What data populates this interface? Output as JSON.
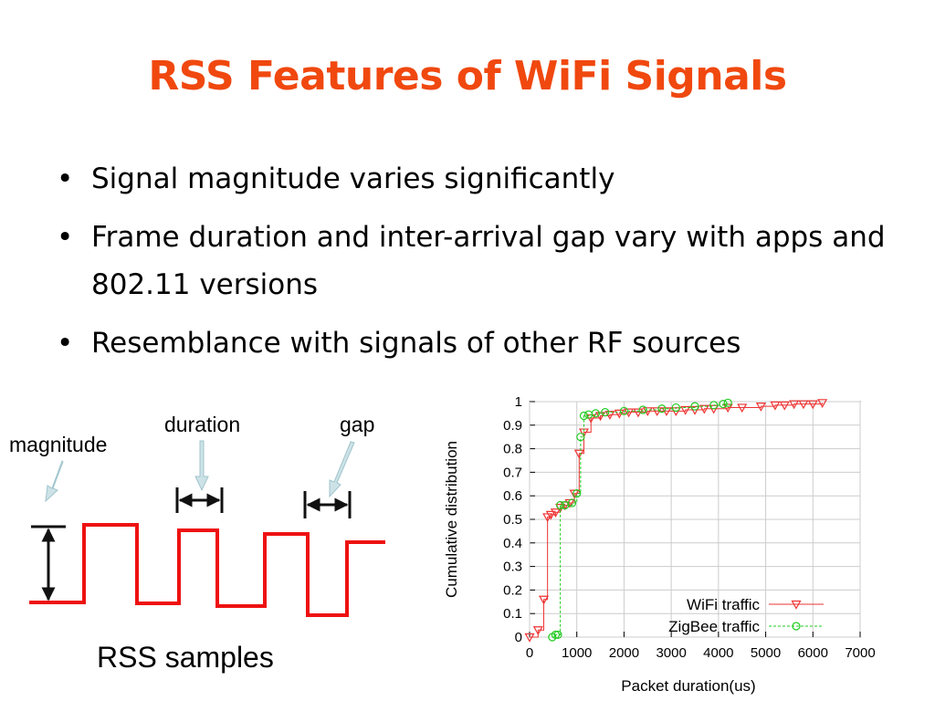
{
  "colors": {
    "accent": "#f0480f",
    "signal": "#ee1111",
    "arrow": "#a9ccd4",
    "wifi": "#ee3333",
    "zigbee": "#22cc22"
  },
  "slide": {
    "title": "RSS Features of WiFi Signals",
    "bullets": [
      {
        "text": "Signal magnitude varies significantly"
      },
      {
        "text": "Frame duration and inter-arrival gap vary with apps and 802.11 versions"
      },
      {
        "text": "Resemblance with signals of other RF sources"
      }
    ],
    "bullet_glyph": "•"
  },
  "diagram": {
    "magnitude_label": "magnitude",
    "duration_label": "duration",
    "gap_label": "gap",
    "caption": "RSS samples"
  },
  "chart_data": {
    "type": "line",
    "title": "",
    "xlabel": "Packet duration(us)",
    "ylabel": "Cumulative distribution",
    "xlim": [
      0,
      7000
    ],
    "ylim": [
      0,
      1
    ],
    "xticks": [
      "0",
      "1000",
      "2000",
      "3000",
      "4000",
      "5000",
      "6000",
      "7000"
    ],
    "yticks": [
      "0",
      "0.1",
      "0.2",
      "0.3",
      "0.4",
      "0.5",
      "0.6",
      "0.7",
      "0.8",
      "0.9",
      "1"
    ],
    "grid": true,
    "legend_position": "bottom-right",
    "series": [
      {
        "name": "WiFi traffic",
        "marker": "triangle-down",
        "x": [
          0,
          180,
          300,
          380,
          450,
          550,
          650,
          750,
          850,
          950,
          1050,
          1150,
          1300,
          1500,
          1700,
          1900,
          2100,
          2300,
          2500,
          2700,
          2900,
          3100,
          3300,
          3500,
          3700,
          3900,
          4200,
          4500,
          4900,
          5200,
          5400,
          5600,
          5800,
          6000,
          6200
        ],
        "y": [
          0,
          0.03,
          0.16,
          0.51,
          0.52,
          0.53,
          0.55,
          0.56,
          0.57,
          0.61,
          0.78,
          0.87,
          0.93,
          0.94,
          0.945,
          0.95,
          0.955,
          0.955,
          0.96,
          0.96,
          0.96,
          0.96,
          0.965,
          0.965,
          0.97,
          0.97,
          0.975,
          0.975,
          0.98,
          0.985,
          0.985,
          0.99,
          0.99,
          0.99,
          0.995
        ]
      },
      {
        "name": "ZigBee traffic",
        "marker": "circle",
        "x": [
          480,
          550,
          600,
          650,
          750,
          900,
          1000,
          1080,
          1150,
          1250,
          1400,
          1600,
          2000,
          2400,
          2800,
          3100,
          3500,
          3900,
          4100,
          4200
        ],
        "y": [
          0,
          0.01,
          0.01,
          0.56,
          0.56,
          0.57,
          0.61,
          0.85,
          0.94,
          0.945,
          0.95,
          0.955,
          0.96,
          0.965,
          0.97,
          0.975,
          0.98,
          0.985,
          0.99,
          0.995
        ]
      }
    ]
  }
}
